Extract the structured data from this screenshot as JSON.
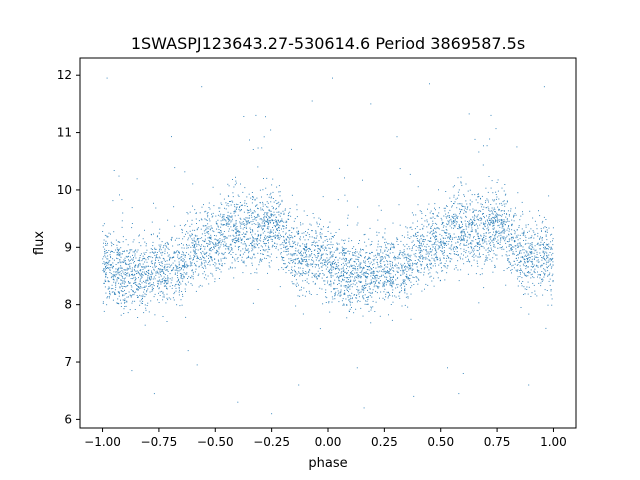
{
  "chart_data": {
    "type": "scatter",
    "title": "1SWASPJ123643.27-530614.6 Period 3869587.5s",
    "xlabel": "phase",
    "ylabel": "flux",
    "xlim": [
      -1.1,
      1.1
    ],
    "ylim": [
      5.85,
      12.3
    ],
    "xticks": [
      -1.0,
      -0.75,
      -0.5,
      -0.25,
      0.0,
      0.25,
      0.5,
      0.75,
      1.0
    ],
    "xtick_labels": [
      "−1.00",
      "−0.75",
      "−0.50",
      "−0.25",
      "0.00",
      "0.25",
      "0.50",
      "0.75",
      "1.00"
    ],
    "yticks": [
      6,
      7,
      8,
      9,
      10,
      11,
      12
    ],
    "ytick_labels": [
      "6",
      "7",
      "8",
      "9",
      "10",
      "11",
      "12"
    ],
    "grid": false,
    "marker_color": "#1f77b4",
    "light_curve_mean": [
      [
        0.0,
        8.7
      ],
      [
        0.05,
        8.6
      ],
      [
        0.1,
        8.45
      ],
      [
        0.15,
        8.5
      ],
      [
        0.2,
        8.55
      ],
      [
        0.25,
        8.6
      ],
      [
        0.3,
        8.65
      ],
      [
        0.35,
        8.7
      ],
      [
        0.4,
        8.95
      ],
      [
        0.45,
        9.05
      ],
      [
        0.5,
        9.1
      ],
      [
        0.55,
        9.3
      ],
      [
        0.6,
        9.35
      ],
      [
        0.65,
        9.3
      ],
      [
        0.7,
        9.25
      ],
      [
        0.75,
        9.4
      ],
      [
        0.8,
        9.3
      ],
      [
        0.85,
        8.9
      ],
      [
        0.9,
        8.8
      ],
      [
        0.95,
        8.9
      ],
      [
        1.0,
        8.7
      ]
    ],
    "scatter_spread": 0.45,
    "n_points_per_cycle": 2600,
    "outliers": [
      [
        -0.98,
        11.95
      ],
      [
        -0.56,
        11.8
      ],
      [
        -0.32,
        11.3
      ],
      [
        -0.07,
        11.55
      ],
      [
        0.02,
        11.95
      ],
      [
        0.19,
        11.5
      ],
      [
        0.45,
        11.85
      ],
      [
        0.96,
        11.8
      ],
      [
        -0.87,
        6.85
      ],
      [
        -0.77,
        6.45
      ],
      [
        -0.58,
        6.95
      ],
      [
        -0.4,
        6.3
      ],
      [
        -0.13,
        6.6
      ],
      [
        0.13,
        6.9
      ],
      [
        0.38,
        6.4
      ],
      [
        0.6,
        6.8
      ],
      [
        0.89,
        6.6
      ],
      [
        -0.25,
        6.1
      ],
      [
        0.16,
        6.2
      ],
      [
        0.58,
        6.45
      ],
      [
        0.53,
        6.9
      ],
      [
        -0.62,
        7.2
      ]
    ]
  }
}
